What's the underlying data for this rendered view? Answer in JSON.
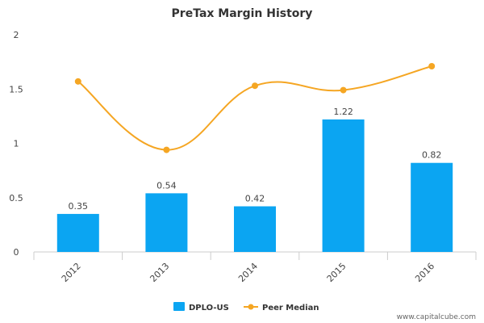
{
  "chart_data": {
    "type": "bar",
    "title": "PreTax Margin History",
    "categories": [
      "2012",
      "2013",
      "2014",
      "2015",
      "2016"
    ],
    "series": [
      {
        "name": "DPLO-US",
        "type": "bar",
        "values": [
          0.35,
          0.54,
          0.42,
          1.22,
          0.82
        ],
        "labels": [
          "0.35",
          "0.54",
          "0.42",
          "1.22",
          "0.82"
        ],
        "color": "#0ba5f2"
      },
      {
        "name": "Peer Median",
        "type": "line",
        "values": [
          1.57,
          0.94,
          1.53,
          1.49,
          1.71
        ],
        "color": "#f5a623"
      }
    ],
    "y_ticks": [
      "0",
      "0.5",
      "1",
      "1.5",
      "2"
    ],
    "ylim": [
      0,
      2
    ],
    "xlabel": "",
    "ylabel": "",
    "grid": false,
    "legend_position": "bottom-center"
  },
  "watermark": "www.capitalcube.com",
  "colors": {
    "axis": "#cccccc",
    "text": "#444444"
  }
}
